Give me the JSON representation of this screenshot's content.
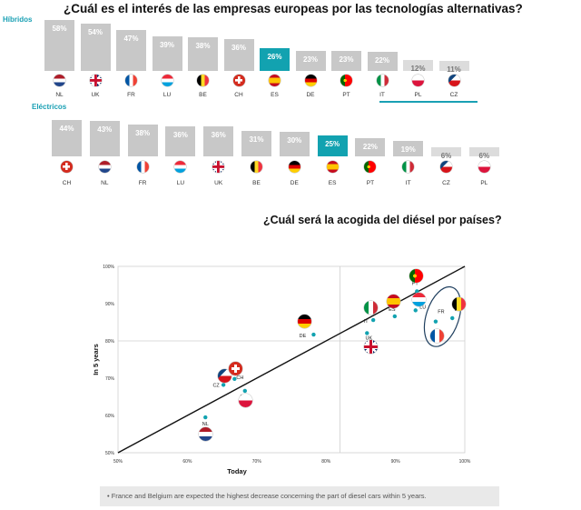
{
  "header": {
    "title": "¿Cuál es el interés de las empresas europeas por las tecnologías alternativas?",
    "hybrid_label": "Híbridos",
    "electric_label": "Eléctricos"
  },
  "chart_data": [
    {
      "type": "bar",
      "categories": [
        "NL",
        "UK",
        "FR",
        "LU",
        "BE",
        "CH",
        "ES",
        "DE",
        "PT",
        "IT",
        "PL",
        "CZ"
      ],
      "values": [
        58,
        54,
        47,
        39,
        38,
        36,
        26,
        23,
        23,
        22,
        12,
        11
      ],
      "value_labels": [
        "58%",
        "54%",
        "47%",
        "39%",
        "38%",
        "36%",
        "26%",
        "23%",
        "23%",
        "22%",
        "12%",
        "11%"
      ],
      "highlight": "ES",
      "ylim": [
        0,
        60
      ]
    },
    {
      "type": "bar",
      "categories": [
        "CH",
        "NL",
        "FR",
        "LU",
        "UK",
        "BE",
        "DE",
        "ES",
        "PT",
        "IT",
        "CZ",
        "PL"
      ],
      "values": [
        44,
        43,
        38,
        36,
        36,
        31,
        30,
        25,
        22,
        19,
        6,
        6
      ],
      "value_labels": [
        "44%",
        "43%",
        "38%",
        "36%",
        "36%",
        "31%",
        "30%",
        "25%",
        "22%",
        "19%",
        "6%",
        "6%"
      ],
      "highlight": "ES",
      "ylim": [
        0,
        46
      ]
    },
    {
      "type": "scatter",
      "title": "¿Cuál será la acogida del diésel por países?",
      "xlabel": "Today",
      "ylabel": "In 5 years",
      "xlim": [
        50,
        100
      ],
      "ylim": [
        50,
        100
      ],
      "x_ticks": [
        "50%",
        "60%",
        "70%",
        "80%",
        "90%",
        "100%"
      ],
      "y_ticks": [
        "50%",
        "60%",
        "70%",
        "80%",
        "90%",
        "100%"
      ],
      "points": [
        {
          "label": "NL",
          "x": 62.6,
          "y": 59.5
        },
        {
          "label": "CZ",
          "x": 65.2,
          "y": 68.2
        },
        {
          "label": "CH",
          "x": 66.8,
          "y": 69.8
        },
        {
          "label": "PL",
          "x": 68.3,
          "y": 66.6
        },
        {
          "label": "DE",
          "x": 78.2,
          "y": 81.7
        },
        {
          "label": "IT",
          "x": 86.8,
          "y": 85.6
        },
        {
          "label": "UK",
          "x": 85.9,
          "y": 82.1
        },
        {
          "label": "ES",
          "x": 89.9,
          "y": 86.6
        },
        {
          "label": "LU",
          "x": 92.9,
          "y": 88.2
        },
        {
          "label": "PT",
          "x": 93.1,
          "y": 93.3
        },
        {
          "label": "FR",
          "x": 95.8,
          "y": 85.2
        },
        {
          "label": "BE",
          "x": 98.2,
          "y": 86.1
        }
      ],
      "grid": false
    }
  ],
  "flag_colors": {
    "NL": [
      "#ae1c28",
      "#ffffff",
      "#21468b"
    ],
    "FR": [
      "#0055a4",
      "#ffffff",
      "#ef4135"
    ],
    "LU": [
      "#ed2939",
      "#ffffff",
      "#00a1de"
    ],
    "BE": [
      "#000000",
      "#fdda24",
      "#ef3340"
    ],
    "DE": [
      "#000000",
      "#dd0000",
      "#ffce00"
    ],
    "IT": [
      "#009246",
      "#ffffff",
      "#ce2b37"
    ],
    "ES": [
      "#c60b1e",
      "#ffc400",
      "#c60b1e"
    ],
    "PL": [
      "#ffffff",
      "#dc143c"
    ],
    "CZ": [
      "#ffffff",
      "#d7141a",
      "#11457e"
    ],
    "CH": [
      "#d52b1e",
      "#ffffff"
    ],
    "UK": [
      "#012169",
      "#ffffff",
      "#c8102e"
    ],
    "PT": [
      "#006600",
      "#ff0000"
    ]
  },
  "footnote": "• France and Belgium are expected the highest  decrease concerning the part of diesel cars within 5 years."
}
